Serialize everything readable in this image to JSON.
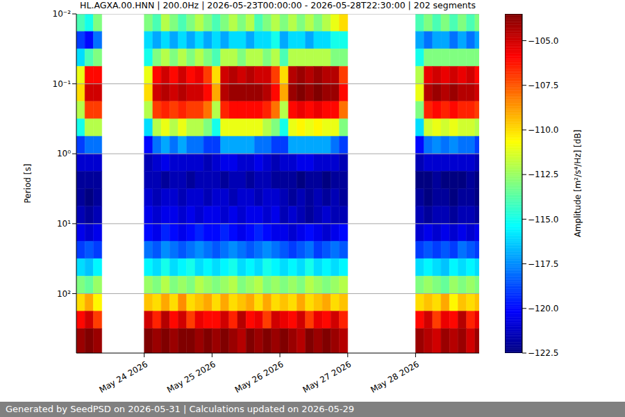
{
  "chart_data": {
    "type": "heatmap",
    "title": "HL.AGXA.00.HNN | 200.0Hz | 2026-05-23T00:00:00 - 2026-05-28T22:30:00 | 202 segments",
    "y_label": "Period [s]",
    "footer": "Generated by SeedPSD on 2026-05-31 | Calculations updated on 2026-05-29",
    "log": "y",
    "grid": true,
    "xlim": [
      0,
      142.5
    ],
    "xticks": [
      {
        "value": 24,
        "label": "May 24 2026"
      },
      {
        "value": 48,
        "label": "May 25 2026"
      },
      {
        "value": 72,
        "label": "May 26 2026"
      },
      {
        "value": 96,
        "label": "May 27 2026"
      },
      {
        "value": 120,
        "label": "May 28 2026"
      }
    ],
    "ylim": [
      0.01,
      708
    ],
    "yticks": [
      {
        "value": 0.01,
        "label": "10⁻²"
      },
      {
        "value": 0.1,
        "label": "10⁻¹"
      },
      {
        "value": 1,
        "label": "10⁰"
      },
      {
        "value": 10,
        "label": "10¹"
      },
      {
        "value": 100,
        "label": "10²"
      }
    ],
    "x_edges": [
      0,
      3,
      6,
      9,
      12,
      15,
      18,
      21,
      24,
      27,
      30,
      33,
      36,
      39,
      42,
      45,
      48,
      51,
      54,
      57,
      60,
      63,
      66,
      69,
      72,
      75,
      78,
      81,
      84,
      87,
      90,
      93,
      96,
      99,
      102,
      105,
      108,
      111,
      114,
      117,
      120,
      123,
      126,
      129,
      132,
      135,
      138,
      141,
      142.5
    ],
    "y_edges": [
      0.01,
      0.0178,
      0.0316,
      0.0562,
      0.1,
      0.178,
      0.316,
      0.562,
      1,
      1.78,
      3.16,
      5.62,
      10,
      17.8,
      31.6,
      56.2,
      100,
      178,
      316,
      708
    ],
    "values": [
      [
        -114,
        -115,
        -113,
        null,
        null,
        null,
        null,
        null,
        -113,
        -114,
        -112,
        -113,
        -114,
        -113,
        -112,
        -113,
        -114,
        -113,
        -112,
        -113,
        -112,
        -114,
        -113,
        -112,
        -113,
        -112,
        -113,
        -112,
        -113,
        -112,
        -111,
        -110,
        null,
        null,
        null,
        null,
        null,
        null,
        null,
        null,
        -114,
        -113,
        -114,
        -113,
        -114,
        -113,
        -114,
        -113
      ],
      [
        -119,
        -120,
        -118,
        null,
        null,
        null,
        null,
        null,
        -116,
        -117,
        -116,
        -117,
        -116,
        -117,
        -116,
        -117,
        -116,
        -117,
        -116,
        -116,
        -117,
        -116,
        -116,
        -115,
        -117,
        -116,
        -116,
        -117,
        -116,
        -116,
        -115,
        -115,
        null,
        null,
        null,
        null,
        null,
        null,
        null,
        null,
        -117,
        -118,
        -117,
        -117,
        -118,
        -117,
        -118,
        -117
      ],
      [
        -116,
        -114,
        -113,
        null,
        null,
        null,
        null,
        null,
        -115,
        -113,
        -112,
        -113,
        -112,
        -113,
        -112,
        -113,
        -114,
        -112,
        -112,
        -113,
        -112,
        -112,
        -113,
        -112,
        -114,
        -112,
        -112,
        -112,
        -112,
        -112,
        -113,
        -113,
        null,
        null,
        null,
        null,
        null,
        null,
        null,
        null,
        -115,
        -113,
        -113,
        -113,
        -113,
        -113,
        -113,
        -113
      ],
      [
        -111,
        -106,
        -106,
        null,
        null,
        null,
        null,
        null,
        -111,
        -106,
        -105,
        -106,
        -105,
        -106,
        -105.5,
        -107,
        -110,
        -105,
        -104.5,
        -105,
        -104.5,
        -105,
        -105,
        -107,
        -110,
        -104.5,
        -104,
        -104.5,
        -104,
        -104.5,
        -104.5,
        -107,
        null,
        null,
        null,
        null,
        null,
        null,
        null,
        null,
        -112,
        -105.5,
        -105,
        -105.5,
        -105,
        -105.5,
        -105,
        -106
      ],
      [
        -110,
        -105,
        -105,
        null,
        null,
        null,
        null,
        null,
        -110,
        -105,
        -104.5,
        -105,
        -104.5,
        -105,
        -105,
        -106,
        -109,
        -104.5,
        -104,
        -104,
        -104,
        -104,
        -104.5,
        -106,
        -109,
        -104,
        -103.5,
        -104,
        -103.5,
        -104,
        -104,
        -106,
        null,
        null,
        null,
        null,
        null,
        null,
        null,
        null,
        -111,
        -104.5,
        -104,
        -104.5,
        -104,
        -104.5,
        -104.5,
        -105
      ],
      [
        -112,
        -107,
        -107,
        null,
        null,
        null,
        null,
        null,
        -112,
        -107,
        -106.5,
        -107,
        -106.5,
        -107,
        -107,
        -108,
        -112,
        -106.5,
        -106,
        -106,
        -106,
        -106,
        -106.5,
        -108,
        -112,
        -106,
        -105.5,
        -106,
        -105.5,
        -106,
        -106,
        -108,
        null,
        null,
        null,
        null,
        null,
        null,
        null,
        null,
        -113,
        -106.5,
        -106,
        -106.5,
        -106,
        -106.5,
        -106.5,
        -107
      ],
      [
        -115,
        -112,
        -112,
        null,
        null,
        null,
        null,
        null,
        -116,
        -112,
        -111,
        -112,
        -111,
        -112,
        -112,
        -113,
        -115,
        -111,
        -111,
        -111,
        -111,
        -111,
        -112,
        -113,
        -115,
        -111,
        -110.5,
        -111,
        -110.5,
        -111,
        -111,
        -113,
        null,
        null,
        null,
        null,
        null,
        null,
        null,
        null,
        -116,
        -111.5,
        -111,
        -111.5,
        -111,
        -111.5,
        -111.5,
        -112
      ],
      [
        -119,
        -118,
        -118,
        null,
        null,
        null,
        null,
        null,
        -120,
        -118,
        -117,
        -118,
        -117,
        -118,
        -118,
        -119,
        -119,
        -117,
        -117,
        -117,
        -117,
        -118,
        -118,
        -119,
        -119,
        -117,
        -117,
        -117,
        -117,
        -117,
        -118,
        -119,
        null,
        null,
        null,
        null,
        null,
        null,
        null,
        null,
        -120,
        -118,
        -117.5,
        -118,
        -117.5,
        -118,
        -118,
        -119
      ],
      [
        -121,
        -121,
        -121,
        null,
        null,
        null,
        null,
        null,
        -121.5,
        -121,
        -120.5,
        -121,
        -121,
        -121,
        -121,
        -121.5,
        -121,
        -120.5,
        -120.5,
        -121,
        -121,
        -120.5,
        -121,
        -121.5,
        -121,
        -121,
        -120.5,
        -120.5,
        -121,
        -121,
        -121,
        -121.5,
        null,
        null,
        null,
        null,
        null,
        null,
        null,
        null,
        -121.5,
        -121,
        -121,
        -121,
        -121,
        -121,
        -121,
        -121.5
      ],
      [
        -122,
        -122,
        -122,
        null,
        null,
        null,
        null,
        null,
        -121.5,
        -121.5,
        -122,
        -121.5,
        -121.5,
        -122,
        -121.5,
        -121.5,
        -121.5,
        -122,
        -121.5,
        -121.5,
        -122,
        -121.5,
        -121.5,
        -122,
        -122,
        -122,
        -122.5,
        -122,
        -122,
        -122.5,
        -122,
        -122,
        null,
        null,
        null,
        null,
        null,
        null,
        null,
        null,
        -122.5,
        -122.5,
        -122,
        -122.5,
        -122.5,
        -122.5,
        -122,
        -122.5
      ],
      [
        -122,
        -122.5,
        -122,
        null,
        null,
        null,
        null,
        null,
        -121,
        -121.5,
        -121,
        -121,
        -121.5,
        -121,
        -121,
        -121.5,
        -121,
        -121,
        -121.5,
        -121,
        -121,
        -121.5,
        -121,
        -121,
        -121.5,
        -122,
        -121.5,
        -122,
        -121.5,
        -122,
        -121.5,
        -122,
        null,
        null,
        null,
        null,
        null,
        null,
        null,
        null,
        -122,
        -122.5,
        -122,
        -122,
        -122.5,
        -122,
        -122,
        -122.5
      ],
      [
        -121.5,
        -122,
        -121.5,
        null,
        null,
        null,
        null,
        null,
        -120.5,
        -121,
        -120.5,
        -120.5,
        -121,
        -120.5,
        -121,
        -120.5,
        -120.5,
        -121,
        -120.5,
        -121,
        -120.5,
        -120.5,
        -121,
        -120.5,
        -121.5,
        -121,
        -121.5,
        -122,
        -121.5,
        -121,
        -121.5,
        -121.5,
        null,
        null,
        null,
        null,
        null,
        null,
        null,
        null,
        -121.5,
        -122,
        -121.5,
        -121.5,
        -122,
        -121.5,
        -121.5,
        -122
      ],
      [
        -120.5,
        -121,
        -120.5,
        null,
        null,
        null,
        null,
        null,
        -120,
        -120.5,
        -119.5,
        -120,
        -120.5,
        -120,
        -119.5,
        -120,
        -120,
        -119.5,
        -120,
        -120.5,
        -120,
        -119.5,
        -120,
        -120.5,
        -120.5,
        -121,
        -120.5,
        -120,
        -120.5,
        -121,
        -120.5,
        -120,
        null,
        null,
        null,
        null,
        null,
        null,
        null,
        null,
        -121,
        -120.5,
        -121,
        -120.5,
        -121,
        -120.5,
        -121,
        -120.5
      ],
      [
        -119,
        -118.5,
        -119,
        null,
        null,
        null,
        null,
        null,
        -118,
        -118.5,
        -117.5,
        -118,
        -118.5,
        -118,
        -117.5,
        -118,
        -118.5,
        -118,
        -117.5,
        -118,
        -118.5,
        -118,
        -117.5,
        -118,
        -118.5,
        -119,
        -118.5,
        -118,
        -119,
        -118.5,
        -118,
        -118.5,
        null,
        null,
        null,
        null,
        null,
        null,
        null,
        null,
        -119,
        -118.5,
        -119,
        -118.5,
        -119,
        -118,
        -118.5,
        -119
      ],
      [
        -116,
        -116.5,
        -115.5,
        null,
        null,
        null,
        null,
        null,
        -115.5,
        -116,
        -115,
        -116,
        -115.5,
        -115,
        -116,
        -115.5,
        -116,
        -115.5,
        -115,
        -116,
        -115.5,
        -116,
        -115,
        -115.5,
        -116,
        -115.5,
        -116,
        -115,
        -116,
        -115.5,
        -116,
        -115.5,
        null,
        null,
        null,
        null,
        null,
        null,
        null,
        null,
        -116,
        -115.5,
        -116,
        -116.5,
        -115.5,
        -116,
        -115.5,
        -116
      ],
      [
        -113,
        -113.5,
        -112.5,
        null,
        null,
        null,
        null,
        null,
        -112.5,
        -113,
        -112,
        -113,
        -112.5,
        -113,
        -112,
        -112.5,
        -113,
        -112.5,
        -112,
        -113,
        -112.5,
        -112,
        -113,
        -112.5,
        -113,
        -112.5,
        -113,
        -112,
        -112.5,
        -113,
        -112.5,
        -112,
        null,
        null,
        null,
        null,
        null,
        null,
        null,
        null,
        -113,
        -112.5,
        -113,
        -113.5,
        -112.5,
        -113,
        -112.5,
        -113
      ],
      [
        -110,
        -109,
        -110.5,
        null,
        null,
        null,
        null,
        null,
        -109.5,
        -110,
        -109,
        -110,
        -108.5,
        -110,
        -109.5,
        -109,
        -110,
        -109,
        -110,
        -109.5,
        -109,
        -110,
        -109,
        -110,
        -109.5,
        -110,
        -109,
        -110,
        -109.5,
        -109,
        -110,
        -109.5,
        null,
        null,
        null,
        null,
        null,
        null,
        null,
        null,
        -110,
        -109.5,
        -110,
        -109,
        -110.5,
        -109.5,
        -110,
        -109.5
      ],
      [
        -106,
        -105,
        -107,
        null,
        null,
        null,
        null,
        null,
        -105,
        -106.5,
        -104.5,
        -106,
        -105,
        -107,
        -105.5,
        -106,
        -106,
        -105,
        -106.5,
        -104.5,
        -106,
        -105.5,
        -107,
        -105,
        -105.5,
        -106,
        -105,
        -107,
        -105.5,
        -106,
        -105,
        -106.5,
        null,
        null,
        null,
        null,
        null,
        null,
        null,
        null,
        -106,
        -105,
        -107,
        -105.5,
        -106,
        -104.5,
        -106.5,
        -105.5
      ],
      [
        -104,
        -103.5,
        -104,
        null,
        null,
        null,
        null,
        null,
        -103.5,
        -104,
        -103.5,
        -104,
        -103.5,
        -103.5,
        -104,
        -103.5,
        -104,
        -103.5,
        -104,
        -104.5,
        -103.5,
        -104,
        -103.5,
        -104,
        -103.5,
        -104,
        -104.5,
        -103.5,
        -104,
        -103.5,
        -104,
        -104.5,
        null,
        null,
        null,
        null,
        null,
        null,
        null,
        null,
        -104,
        -104.5,
        -105,
        -104,
        -104.5,
        -104,
        -105,
        -104
      ]
    ],
    "color_label": "Amplitude [m²/s⁴/Hz] [dB]",
    "color_range": [
      -122.5,
      -103.5
    ],
    "color_ticks": [
      {
        "value": -122.5,
        "label": "−122.5"
      },
      {
        "value": -120,
        "label": "−120.0"
      },
      {
        "value": -117.5,
        "label": "−117.5"
      },
      {
        "value": -115,
        "label": "−115.0"
      },
      {
        "value": -112.5,
        "label": "−112.5"
      },
      {
        "value": -110,
        "label": "−110.0"
      },
      {
        "value": -107.5,
        "label": "−107.5"
      },
      {
        "value": -105,
        "label": "−105.0"
      }
    ]
  }
}
